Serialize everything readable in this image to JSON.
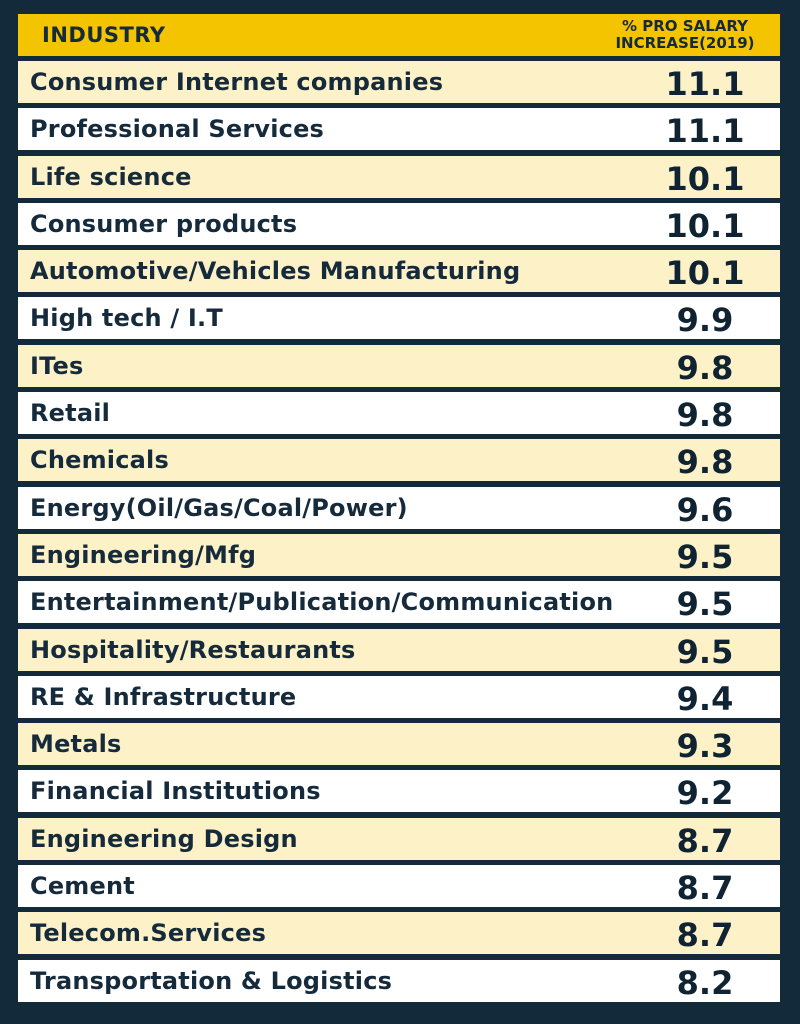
{
  "chart_data": {
    "type": "table",
    "columns": [
      "INDUSTRY",
      "% PRO SALARY INCREASE(2019)"
    ],
    "header": {
      "industry": "INDUSTRY",
      "value_line1": "% PRO SALARY",
      "value_line2": "INCREASE(2019)"
    },
    "rows": [
      {
        "industry": "Consumer Internet companies",
        "value": "11.1"
      },
      {
        "industry": "Professional Services",
        "value": "11.1"
      },
      {
        "industry": "Life science",
        "value": "10.1"
      },
      {
        "industry": "Consumer products",
        "value": "10.1"
      },
      {
        "industry": "Automotive/Vehicles Manufacturing",
        "value": "10.1"
      },
      {
        "industry": "High tech / I.T",
        "value": "9.9"
      },
      {
        "industry": "ITes",
        "value": "9.8"
      },
      {
        "industry": "Retail",
        "value": "9.8"
      },
      {
        "industry": "Chemicals",
        "value": "9.8"
      },
      {
        "industry": "Energy(Oil/Gas/Coal/Power)",
        "value": "9.6"
      },
      {
        "industry": "Engineering/Mfg",
        "value": "9.5"
      },
      {
        "industry": "Entertainment/Publication/Communication",
        "value": "9.5"
      },
      {
        "industry": "Hospitality/Restaurants",
        "value": "9.5"
      },
      {
        "industry": "RE & Infrastructure",
        "value": "9.4"
      },
      {
        "industry": "Metals",
        "value": "9.3"
      },
      {
        "industry": "Financial Institutions",
        "value": "9.2"
      },
      {
        "industry": "Engineering Design",
        "value": "8.7"
      },
      {
        "industry": "Cement",
        "value": "8.7"
      },
      {
        "industry": "Telecom.Services",
        "value": "8.7"
      },
      {
        "industry": "Transportation & Logistics",
        "value": "8.2"
      }
    ]
  },
  "colors": {
    "background": "#132a3a",
    "header": "#f5c400",
    "row_odd": "#fdf2c7",
    "row_even": "#ffffff",
    "text": "#152a3b"
  }
}
